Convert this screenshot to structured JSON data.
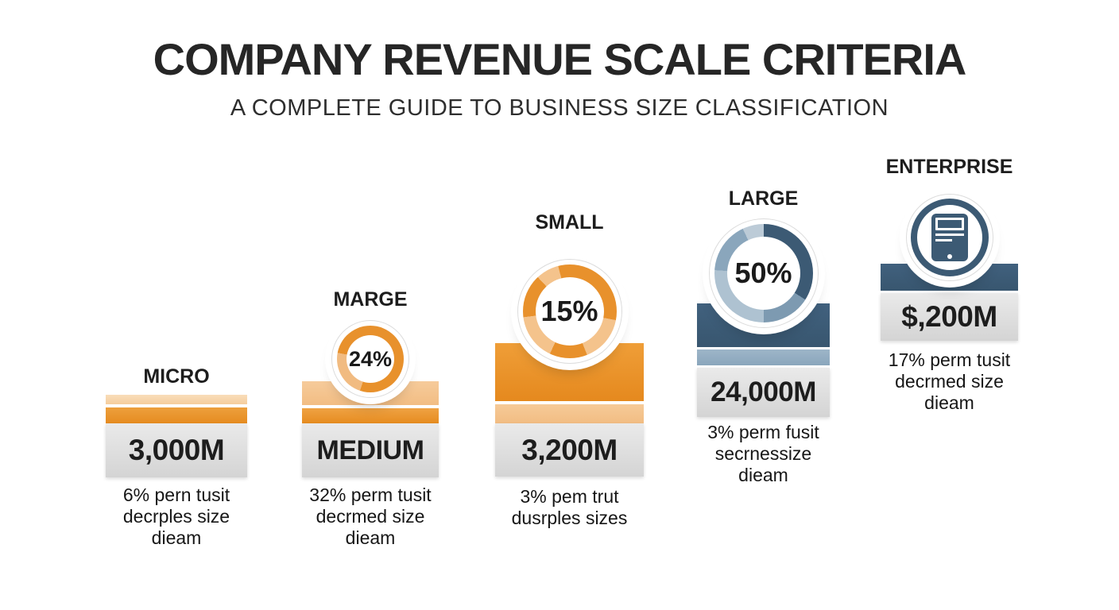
{
  "header": {
    "title": "COMPANY REVENUE SCALE CRITERIA",
    "subtitle": "A COMPLETE GUIDE TO BUSINESS SIZE CLASSIFICATION"
  },
  "columns": [
    {
      "label": "MICRO",
      "value": "3,000M",
      "caption_lines": [
        "6% pern tusit",
        "decrples size",
        "dieam"
      ]
    },
    {
      "label": "MARGE",
      "percent_label": "24%",
      "value": "MEDIUM",
      "caption_lines": [
        "32% perm tusit",
        "decrmed size",
        "dieam"
      ]
    },
    {
      "label": "SMALL",
      "percent_label": "15%",
      "value": "3,200M",
      "caption_lines": [
        "3% pem trut",
        "dusrples sizes"
      ]
    },
    {
      "label": "LARGE",
      "percent_label": "50%",
      "value": "24,000M",
      "caption_lines": [
        "3% perm fusit",
        "secrnessize",
        "dieam"
      ]
    },
    {
      "label": "ENTERPRISE",
      "icon": "tablet-document-icon",
      "value": "$,200M",
      "caption_lines": [
        "17% perm tusit",
        "decrmed size",
        "dieam"
      ]
    }
  ],
  "colors": {
    "orange": "#E8912C",
    "orange_light": "#F4C38C",
    "orange_pale": "#F8D9B2",
    "blue_dark": "#3C5A74",
    "blue_light": "#8AA6BC",
    "blue_pale": "#AEC2D1",
    "block_gray": "#DCDCDC",
    "text_dark": "#1D1D1D"
  },
  "chart_data": {
    "type": "pie",
    "variant": "donut-infographic-with-stacked-bars",
    "title": "COMPANY REVENUE SCALE CRITERIA",
    "subtitle": "A COMPLETE GUIDE TO BUSINESS SIZE CLASSIFICATION",
    "legend_position": "none",
    "series": [
      {
        "category": "MICRO",
        "donut_percent": null,
        "value_label": "3,000M",
        "caption": "6% pern tusit decrples size dieam",
        "palette": "orange"
      },
      {
        "category": "MARGE",
        "donut_percent": 24,
        "value_label": "MEDIUM",
        "caption": "32% perm tusit decrmed size dieam",
        "palette": "orange"
      },
      {
        "category": "SMALL",
        "donut_percent": 15,
        "value_label": "3,200M",
        "caption": "3% pem trut dusrples sizes",
        "palette": "orange"
      },
      {
        "category": "LARGE",
        "donut_percent": 50,
        "value_label": "24,000M",
        "caption": "3% perm fusit secrnessize dieam",
        "palette": "blue"
      },
      {
        "category": "ENTERPRISE",
        "donut_percent": null,
        "value_label": "$,200M",
        "caption": "17% perm tusit decrmed size dieam",
        "palette": "blue"
      }
    ]
  }
}
